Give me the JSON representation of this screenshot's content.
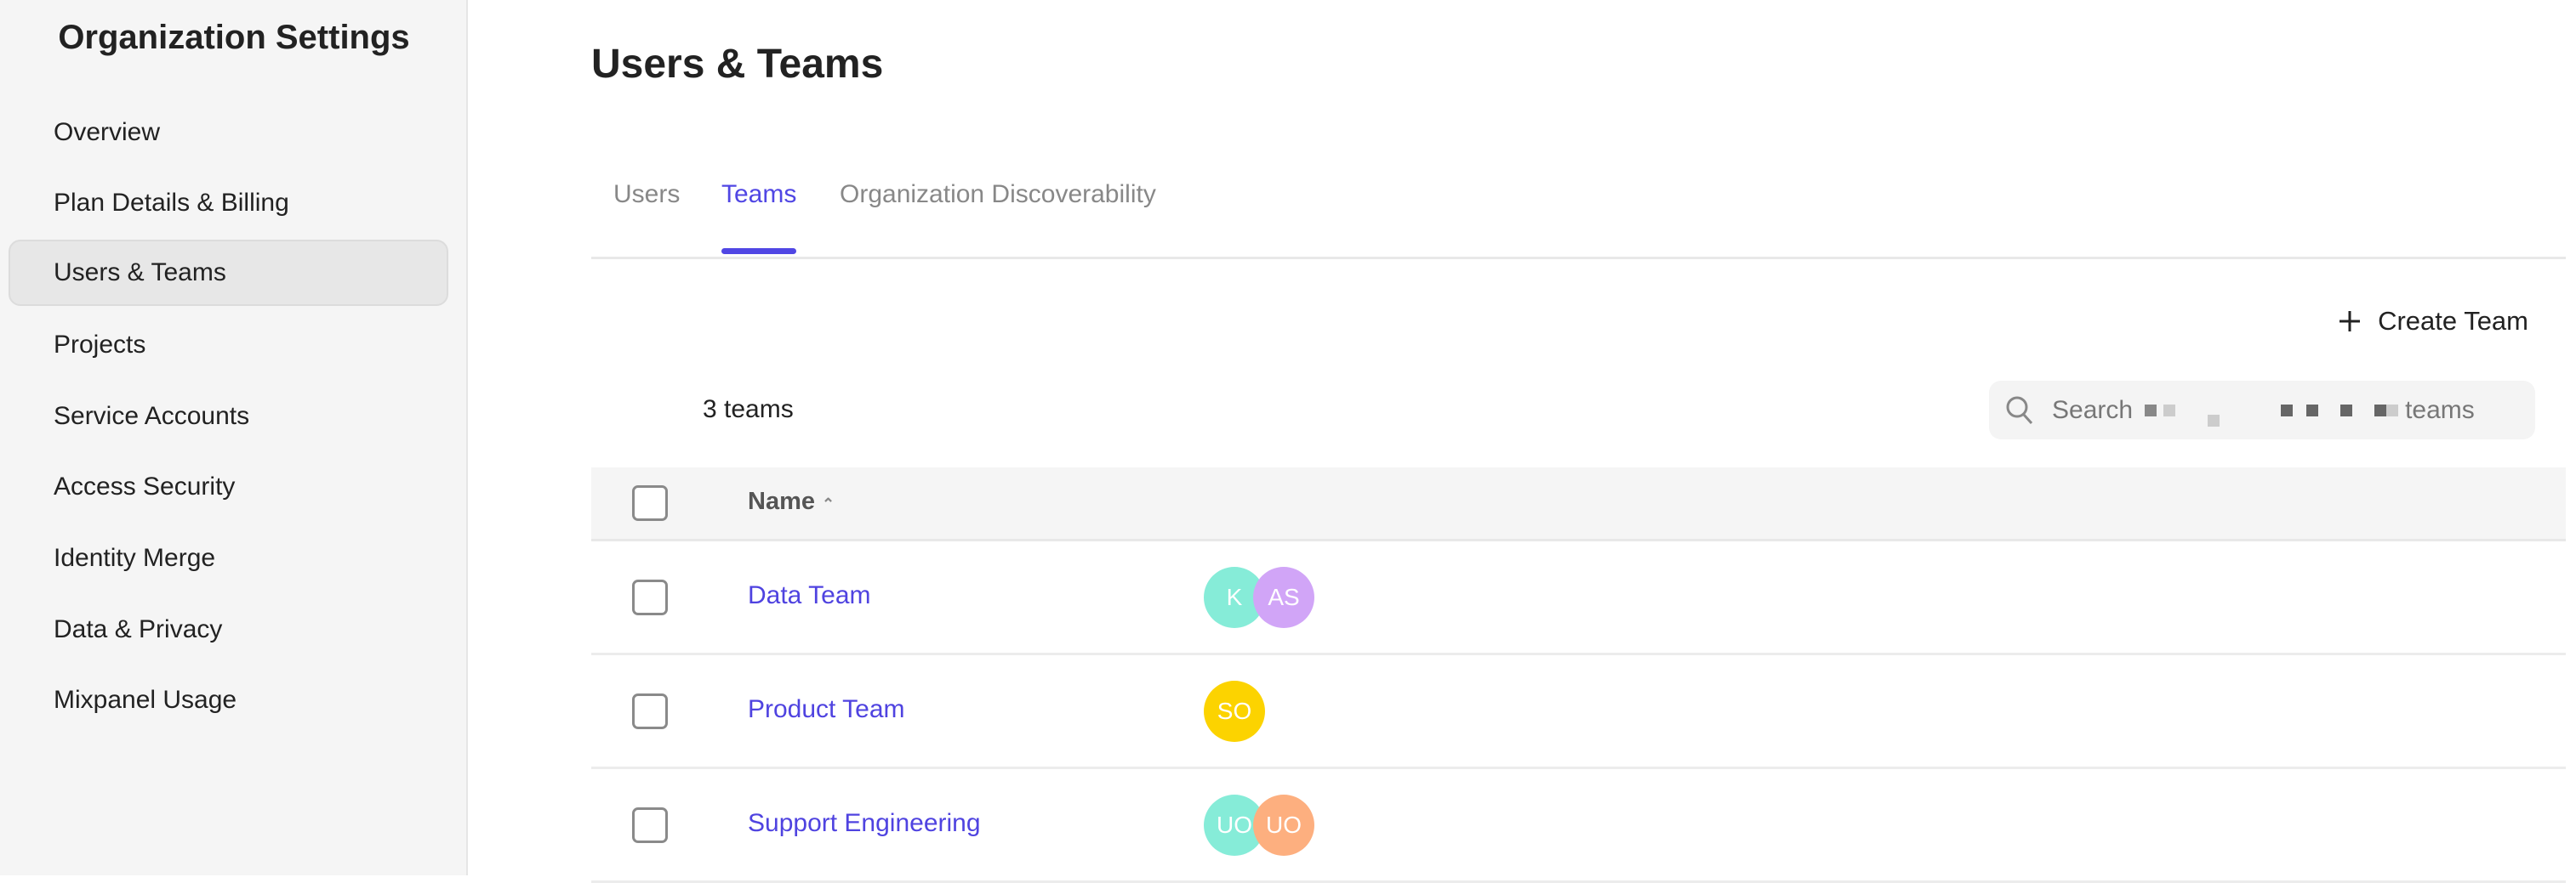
{
  "sidebar": {
    "title": "Organization Settings",
    "items": [
      {
        "label": "Overview"
      },
      {
        "label": "Plan Details & Billing"
      },
      {
        "label": "Users & Teams",
        "active": true
      },
      {
        "label": "Projects"
      },
      {
        "label": "Service Accounts"
      },
      {
        "label": "Access Security"
      },
      {
        "label": "Identity Merge"
      },
      {
        "label": "Data & Privacy"
      },
      {
        "label": "Mixpanel Usage"
      }
    ]
  },
  "main": {
    "title": "Users & Teams",
    "tabs": [
      {
        "label": "Users"
      },
      {
        "label": "Teams",
        "active": true
      },
      {
        "label": "Organization Discoverability"
      }
    ],
    "create_label": "Create Team",
    "count_label": "3 teams",
    "search": {
      "prefix": "Search",
      "suffix": "teams"
    },
    "table": {
      "header_name": "Name",
      "rows": [
        {
          "name": "Data Team",
          "avatars": [
            {
              "initials": "K",
              "color": "#86ecd8"
            },
            {
              "initials": "AS",
              "color": "#d1a5f7"
            }
          ]
        },
        {
          "name": "Product Team",
          "avatars": [
            {
              "initials": "SO",
              "color": "#fcd300"
            }
          ]
        },
        {
          "name": "Support Engineering",
          "avatars": [
            {
              "initials": "UO",
              "color": "#86ecd8"
            },
            {
              "initials": "UO",
              "color": "#fdaf7f"
            }
          ]
        }
      ]
    }
  },
  "colors": {
    "accent": "#5046e4"
  }
}
